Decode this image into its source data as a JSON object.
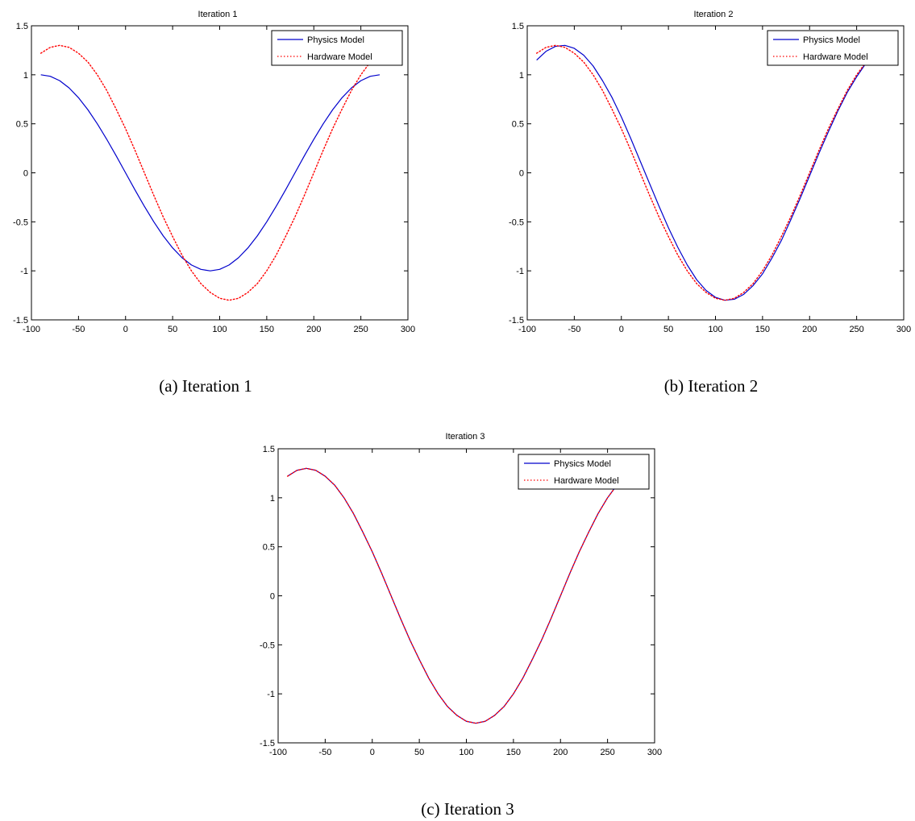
{
  "figure": {
    "colors": {
      "physics": "#0000cc",
      "hardware": "#ff0000",
      "axis": "#000000"
    }
  },
  "chart_data": [
    {
      "type": "line",
      "title": "Iteration 1",
      "caption": "(a) Iteration 1",
      "xlim": [
        -100,
        300
      ],
      "ylim": [
        -1.5,
        1.5
      ],
      "xticks": [
        -100,
        -50,
        0,
        50,
        100,
        150,
        200,
        250,
        300
      ],
      "yticks": [
        -1.5,
        -1,
        -0.5,
        0,
        0.5,
        1,
        1.5
      ],
      "xtick_labels": [
        "-100",
        "-50",
        "0",
        "50",
        "100",
        "150",
        "200",
        "250",
        "300"
      ],
      "ytick_labels": [
        "-1.5",
        "-1",
        "-0.5",
        "0",
        "0.5",
        "1",
        "1.5"
      ],
      "legend": {
        "position": "top-right",
        "entries": [
          "Physics Model",
          "Hardware Model"
        ]
      },
      "series": [
        {
          "name": "Physics Model",
          "style": "solid",
          "x": [
            -90,
            -80,
            -70,
            -60,
            -50,
            -40,
            -30,
            -20,
            -10,
            0,
            10,
            20,
            30,
            40,
            50,
            60,
            70,
            80,
            90,
            100,
            110,
            120,
            130,
            140,
            150,
            160,
            170,
            180,
            190,
            200,
            210,
            220,
            230,
            240,
            250,
            260,
            270
          ],
          "y": [
            1.0,
            0.985,
            0.94,
            0.866,
            0.766,
            0.643,
            0.5,
            0.342,
            0.174,
            0.0,
            -0.174,
            -0.342,
            -0.5,
            -0.643,
            -0.766,
            -0.866,
            -0.94,
            -0.985,
            -1.0,
            -0.985,
            -0.94,
            -0.866,
            -0.766,
            -0.643,
            -0.5,
            -0.342,
            -0.174,
            0.0,
            0.174,
            0.342,
            0.5,
            0.643,
            0.766,
            0.866,
            0.94,
            0.985,
            1.0
          ]
        },
        {
          "name": "Hardware Model",
          "style": "dotted",
          "x": [
            -90,
            -80,
            -70,
            -60,
            -50,
            -40,
            -30,
            -20,
            -10,
            0,
            10,
            20,
            30,
            40,
            50,
            60,
            70,
            80,
            90,
            100,
            110,
            120,
            130,
            140,
            150,
            160,
            170,
            180,
            190,
            200,
            210,
            220,
            230,
            240,
            250,
            260
          ],
          "y": [
            1.22,
            1.28,
            1.3,
            1.28,
            1.22,
            1.13,
            1.0,
            0.84,
            0.65,
            0.45,
            0.23,
            0.0,
            -0.23,
            -0.45,
            -0.65,
            -0.84,
            -1.0,
            -1.13,
            -1.22,
            -1.28,
            -1.3,
            -1.28,
            -1.22,
            -1.13,
            -1.0,
            -0.84,
            -0.65,
            -0.45,
            -0.23,
            0.0,
            0.23,
            0.45,
            0.65,
            0.84,
            1.0,
            1.13
          ]
        }
      ]
    },
    {
      "type": "line",
      "title": "Iteration 2",
      "caption": "(b) Iteration 2",
      "xlim": [
        -100,
        300
      ],
      "ylim": [
        -1.5,
        1.5
      ],
      "xticks": [
        -100,
        -50,
        0,
        50,
        100,
        150,
        200,
        250,
        300
      ],
      "yticks": [
        -1.5,
        -1,
        -0.5,
        0,
        0.5,
        1,
        1.5
      ],
      "xtick_labels": [
        "-100",
        "-50",
        "0",
        "50",
        "100",
        "150",
        "200",
        "250",
        "300"
      ],
      "ytick_labels": [
        "-1.5",
        "-1",
        "-0.5",
        "0",
        "0.5",
        "1",
        "1.5"
      ],
      "legend": {
        "position": "top-right",
        "entries": [
          "Physics Model",
          "Hardware Model"
        ]
      },
      "series": [
        {
          "name": "Physics Model",
          "style": "solid",
          "x": [
            -90,
            -80,
            -70,
            -60,
            -50,
            -40,
            -30,
            -20,
            -10,
            0,
            10,
            20,
            30,
            40,
            50,
            60,
            70,
            80,
            90,
            100,
            110,
            120,
            130,
            140,
            150,
            160,
            170,
            180,
            190,
            200,
            210,
            220,
            230,
            240,
            250,
            260
          ],
          "y": [
            1.15,
            1.24,
            1.29,
            1.3,
            1.27,
            1.2,
            1.09,
            0.94,
            0.77,
            0.57,
            0.35,
            0.12,
            -0.11,
            -0.34,
            -0.56,
            -0.76,
            -0.94,
            -1.09,
            -1.2,
            -1.27,
            -1.3,
            -1.29,
            -1.24,
            -1.15,
            -1.03,
            -0.87,
            -0.69,
            -0.48,
            -0.26,
            -0.03,
            0.2,
            0.42,
            0.63,
            0.82,
            0.98,
            1.12
          ]
        },
        {
          "name": "Hardware Model",
          "style": "dotted",
          "x": [
            -90,
            -80,
            -70,
            -60,
            -50,
            -40,
            -30,
            -20,
            -10,
            0,
            10,
            20,
            30,
            40,
            50,
            60,
            70,
            80,
            90,
            100,
            110,
            120,
            130,
            140,
            150,
            160,
            170,
            180,
            190,
            200,
            210,
            220,
            230,
            240,
            250,
            260
          ],
          "y": [
            1.22,
            1.28,
            1.3,
            1.28,
            1.22,
            1.13,
            1.0,
            0.84,
            0.65,
            0.45,
            0.23,
            0.0,
            -0.23,
            -0.45,
            -0.65,
            -0.84,
            -1.0,
            -1.13,
            -1.22,
            -1.28,
            -1.3,
            -1.28,
            -1.22,
            -1.13,
            -1.0,
            -0.84,
            -0.65,
            -0.45,
            -0.23,
            0.0,
            0.23,
            0.45,
            0.65,
            0.84,
            1.0,
            1.13
          ]
        }
      ]
    },
    {
      "type": "line",
      "title": "Iteration 3",
      "caption": "(c) Iteration 3",
      "xlim": [
        -100,
        300
      ],
      "ylim": [
        -1.5,
        1.5
      ],
      "xticks": [
        -100,
        -50,
        0,
        50,
        100,
        150,
        200,
        250,
        300
      ],
      "yticks": [
        -1.5,
        -1,
        -0.5,
        0,
        0.5,
        1,
        1.5
      ],
      "xtick_labels": [
        "-100",
        "-50",
        "0",
        "50",
        "100",
        "150",
        "200",
        "250",
        "300"
      ],
      "ytick_labels": [
        "-1.5",
        "-1",
        "-0.5",
        "0",
        "0.5",
        "1",
        "1.5"
      ],
      "legend": {
        "position": "top-right",
        "entries": [
          "Physics Model",
          "Hardware Model"
        ]
      },
      "series": [
        {
          "name": "Physics Model",
          "style": "solid",
          "x": [
            -90,
            -80,
            -70,
            -60,
            -50,
            -40,
            -30,
            -20,
            -10,
            0,
            10,
            20,
            30,
            40,
            50,
            60,
            70,
            80,
            90,
            100,
            110,
            120,
            130,
            140,
            150,
            160,
            170,
            180,
            190,
            200,
            210,
            220,
            230,
            240,
            250,
            260
          ],
          "y": [
            1.22,
            1.28,
            1.3,
            1.28,
            1.22,
            1.13,
            1.0,
            0.84,
            0.65,
            0.45,
            0.23,
            0.0,
            -0.23,
            -0.45,
            -0.65,
            -0.84,
            -1.0,
            -1.13,
            -1.22,
            -1.28,
            -1.3,
            -1.28,
            -1.22,
            -1.13,
            -1.0,
            -0.84,
            -0.65,
            -0.45,
            -0.23,
            0.0,
            0.23,
            0.45,
            0.65,
            0.84,
            1.0,
            1.13
          ]
        },
        {
          "name": "Hardware Model",
          "style": "dotted",
          "x": [
            -90,
            -80,
            -70,
            -60,
            -50,
            -40,
            -30,
            -20,
            -10,
            0,
            10,
            20,
            30,
            40,
            50,
            60,
            70,
            80,
            90,
            100,
            110,
            120,
            130,
            140,
            150,
            160,
            170,
            180,
            190,
            200,
            210,
            220,
            230,
            240,
            250,
            260
          ],
          "y": [
            1.22,
            1.28,
            1.3,
            1.28,
            1.22,
            1.13,
            1.0,
            0.84,
            0.65,
            0.45,
            0.23,
            0.0,
            -0.23,
            -0.45,
            -0.65,
            -0.84,
            -1.0,
            -1.13,
            -1.22,
            -1.28,
            -1.3,
            -1.28,
            -1.22,
            -1.13,
            -1.0,
            -0.84,
            -0.65,
            -0.45,
            -0.23,
            0.0,
            0.23,
            0.45,
            0.65,
            0.84,
            1.0,
            1.13
          ]
        }
      ]
    }
  ]
}
